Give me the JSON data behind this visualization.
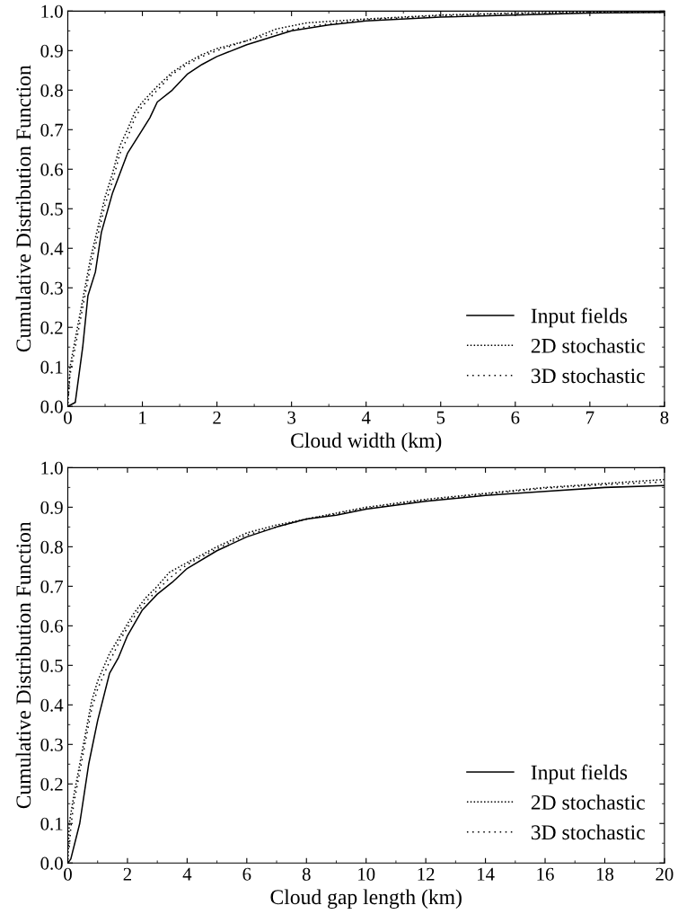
{
  "chart_data": [
    {
      "type": "line",
      "xlabel": "Cloud width (km)",
      "ylabel": "Cumulative Distribution Function",
      "xlim": [
        0,
        8
      ],
      "ylim": [
        0,
        1
      ],
      "xticks": [
        0,
        1,
        2,
        3,
        4,
        5,
        6,
        7,
        8
      ],
      "yticks": [
        {
          "value": 0,
          "label": "0.0"
        },
        {
          "value": 0.1,
          "label": "0.1"
        },
        {
          "value": 0.2,
          "label": "0.2"
        },
        {
          "value": 0.3,
          "label": "0.3"
        },
        {
          "value": 0.4,
          "label": "0.4"
        },
        {
          "value": 0.5,
          "label": "0.5"
        },
        {
          "value": 0.6,
          "label": "0.6"
        },
        {
          "value": 0.7,
          "label": "0.7"
        },
        {
          "value": 0.8,
          "label": "0.8"
        },
        {
          "value": 0.9,
          "label": "0.9"
        },
        {
          "value": 1,
          "label": "1.0"
        }
      ],
      "legend": "bottom right",
      "grid": false,
      "marker": "none",
      "series": [
        {
          "name": "Input fields",
          "color": "#000000",
          "line_style": "solid",
          "x": [
            0,
            0.1,
            0.2,
            0.27,
            0.37,
            0.45,
            0.6,
            0.8,
            1.0,
            1.1,
            1.2,
            1.4,
            1.6,
            1.8,
            2.0,
            2.4,
            3.0,
            3.5,
            4,
            5,
            6,
            7,
            8
          ],
          "values": [
            0,
            0.01,
            0.15,
            0.28,
            0.34,
            0.44,
            0.54,
            0.64,
            0.7,
            0.73,
            0.77,
            0.8,
            0.84,
            0.865,
            0.885,
            0.915,
            0.95,
            0.965,
            0.975,
            0.985,
            0.99,
            0.995,
            0.997
          ]
        },
        {
          "name": "2D stochastic",
          "color": "#000000",
          "line_style": "dotted",
          "x": [
            0,
            0.03,
            0.1,
            0.2,
            0.3,
            0.4,
            0.5,
            0.6,
            0.7,
            0.8,
            0.9,
            1.0,
            1.2,
            1.4,
            1.6,
            1.8,
            2.0,
            2.4,
            2.8,
            3.2,
            3.6,
            4,
            5,
            6,
            7,
            8
          ],
          "values": [
            0,
            0.1,
            0.17,
            0.27,
            0.37,
            0.45,
            0.53,
            0.59,
            0.66,
            0.7,
            0.745,
            0.77,
            0.81,
            0.845,
            0.87,
            0.89,
            0.905,
            0.925,
            0.955,
            0.97,
            0.975,
            0.98,
            0.99,
            0.995,
            0.998,
            0.999
          ]
        },
        {
          "name": "3D stochastic",
          "color": "#000000",
          "line_style": "dotted",
          "x": [
            0.01,
            0.03,
            0.1,
            0.2,
            0.3,
            0.4,
            0.5,
            0.6,
            0.7,
            0.8,
            0.9,
            1.0,
            1.2,
            1.4,
            1.6,
            1.8,
            2.0,
            2.4,
            2.8,
            3.2,
            3.6,
            4,
            5,
            6,
            7,
            8
          ],
          "values": [
            0.03,
            0.08,
            0.15,
            0.25,
            0.35,
            0.43,
            0.51,
            0.57,
            0.64,
            0.68,
            0.73,
            0.76,
            0.8,
            0.84,
            0.865,
            0.885,
            0.9,
            0.925,
            0.945,
            0.96,
            0.97,
            0.978,
            0.988,
            0.994,
            0.996,
            0.997
          ]
        }
      ]
    },
    {
      "type": "line",
      "xlabel": "Cloud gap length (km)",
      "ylabel": "Cumulative Distribution Function",
      "xlim": [
        0,
        20
      ],
      "ylim": [
        0,
        1
      ],
      "xticks": [
        0,
        2,
        4,
        6,
        8,
        10,
        12,
        14,
        16,
        18,
        20
      ],
      "yticks": [
        {
          "value": 0,
          "label": "0.0"
        },
        {
          "value": 0.1,
          "label": "0.1"
        },
        {
          "value": 0.2,
          "label": "0.2"
        },
        {
          "value": 0.3,
          "label": "0.3"
        },
        {
          "value": 0.4,
          "label": "0.4"
        },
        {
          "value": 0.5,
          "label": "0.5"
        },
        {
          "value": 0.6,
          "label": "0.6"
        },
        {
          "value": 0.7,
          "label": "0.7"
        },
        {
          "value": 0.8,
          "label": "0.8"
        },
        {
          "value": 0.9,
          "label": "0.9"
        },
        {
          "value": 1,
          "label": "1.0"
        }
      ],
      "legend": "bottom right",
      "grid": false,
      "marker": "none",
      "series": [
        {
          "name": "Input fields",
          "color": "#000000",
          "line_style": "solid",
          "x": [
            0,
            0.1,
            0.4,
            0.7,
            1.0,
            1.4,
            1.7,
            2.0,
            2.5,
            3.0,
            3.5,
            4,
            5,
            6,
            7,
            8,
            9,
            10,
            12,
            14,
            16,
            18,
            20
          ],
          "values": [
            0,
            0.01,
            0.1,
            0.25,
            0.36,
            0.48,
            0.52,
            0.575,
            0.64,
            0.68,
            0.71,
            0.745,
            0.79,
            0.825,
            0.85,
            0.87,
            0.88,
            0.895,
            0.915,
            0.93,
            0.94,
            0.95,
            0.955
          ]
        },
        {
          "name": "2D stochastic",
          "color": "#000000",
          "line_style": "dotted",
          "x": [
            0,
            0.05,
            0.2,
            0.4,
            0.6,
            0.8,
            1.0,
            1.4,
            1.8,
            2.2,
            2.6,
            3.0,
            3.4,
            4,
            5,
            6,
            7,
            8,
            9,
            10,
            12,
            14,
            16,
            18,
            20
          ],
          "values": [
            0,
            0.1,
            0.17,
            0.25,
            0.33,
            0.41,
            0.46,
            0.53,
            0.58,
            0.63,
            0.67,
            0.7,
            0.735,
            0.76,
            0.8,
            0.835,
            0.855,
            0.87,
            0.885,
            0.9,
            0.92,
            0.935,
            0.95,
            0.96,
            0.97
          ]
        },
        {
          "name": "3D stochastic",
          "color": "#000000",
          "line_style": "dotted",
          "x": [
            0.05,
            0.1,
            0.2,
            0.4,
            0.6,
            0.8,
            1.0,
            1.4,
            1.8,
            2.2,
            2.6,
            3.0,
            3.4,
            4,
            5,
            6,
            7,
            8,
            9,
            10,
            12,
            14,
            16,
            18,
            20
          ],
          "values": [
            0.04,
            0.09,
            0.15,
            0.23,
            0.31,
            0.39,
            0.44,
            0.51,
            0.57,
            0.62,
            0.66,
            0.69,
            0.72,
            0.755,
            0.795,
            0.83,
            0.85,
            0.87,
            0.883,
            0.897,
            0.917,
            0.933,
            0.948,
            0.957,
            0.964
          ]
        }
      ]
    }
  ]
}
